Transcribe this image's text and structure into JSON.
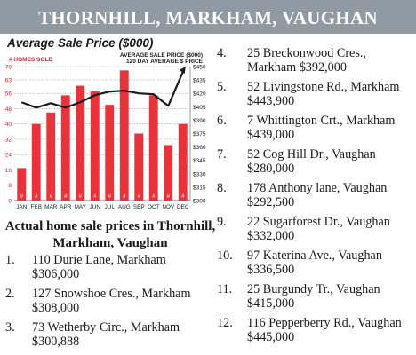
{
  "banner": {
    "title": "THORNHILL, MARKHAM, VAUGHAN"
  },
  "chart_data": {
    "type": "bar",
    "title": "Average Sale Price ($000)",
    "categories": [
      "JAN",
      "FEB",
      "MAR",
      "APR",
      "MAY",
      "JUN",
      "JUL",
      "AUG",
      "SEP",
      "OCT",
      "NOV",
      "DEC"
    ],
    "series": [
      {
        "name": "# HOMES SOLD",
        "type": "bar",
        "color": "#e8333a",
        "values": [
          17,
          40,
          46,
          55,
          60,
          57,
          50,
          68,
          35,
          55,
          29,
          40
        ]
      },
      {
        "name": "AVERAGE SALE PRICE ($000)",
        "type": "line",
        "color": "#1a1a1a",
        "values": [
          410,
          404,
          409,
          404,
          410,
          418,
          422,
          423,
          420,
          419,
          406,
          444
        ]
      }
    ],
    "legend_right": [
      "AVERAGE SALE PRICE ($000)",
      "120 DAY AVERAGE $ PRICE"
    ],
    "bar_marker": "#",
    "y_left": {
      "label": "# HOMES SOLD",
      "min": 0,
      "max": 70,
      "ticks": [
        0,
        8,
        16,
        24,
        32,
        40,
        48,
        56,
        63,
        70
      ]
    },
    "y_right": {
      "min": 300,
      "max": 450,
      "ticks": [
        "$300",
        "$315",
        "$330",
        "$345",
        "$360",
        "$375",
        "$390",
        "$405",
        "$420",
        "$435",
        "$450"
      ]
    },
    "grid": true
  },
  "chart_heading": "Actual home sale prices in Thornhill, Markham, Vaughan",
  "listings": [
    {
      "num": "1.",
      "text": "110 Durie Lane, Markham $306,000"
    },
    {
      "num": "2.",
      "text": "127 Snowshoe Cres., Markham $308,000"
    },
    {
      "num": "3.",
      "text": "73 Wetherby Circ., Markham $300,888"
    },
    {
      "num": "4.",
      "text": "25 Breckonwood Cres., Markham $392,000"
    },
    {
      "num": "5.",
      "text": "52 Livingstone Rd., Markham $443,900"
    },
    {
      "num": "6.",
      "text": "7 Whittington Crt., Markham $439,000"
    },
    {
      "num": "7.",
      "text": "52 Cog Hill Dr., Vaughan $280,000"
    },
    {
      "num": "8.",
      "text": "178 Anthony lane, Vaughan $292,500"
    },
    {
      "num": "9.",
      "text": "22 Sugarforest Dr., Vaughan $332,000"
    },
    {
      "num": "10.",
      "text": "97 Katerina Ave., Vaughan $336,500"
    },
    {
      "num": "11.",
      "text": "25 Burgundy Tr., Vaughan $415,000"
    },
    {
      "num": "12.",
      "text": "116 Pepperberry Rd., Vaughan $445,000"
    }
  ]
}
